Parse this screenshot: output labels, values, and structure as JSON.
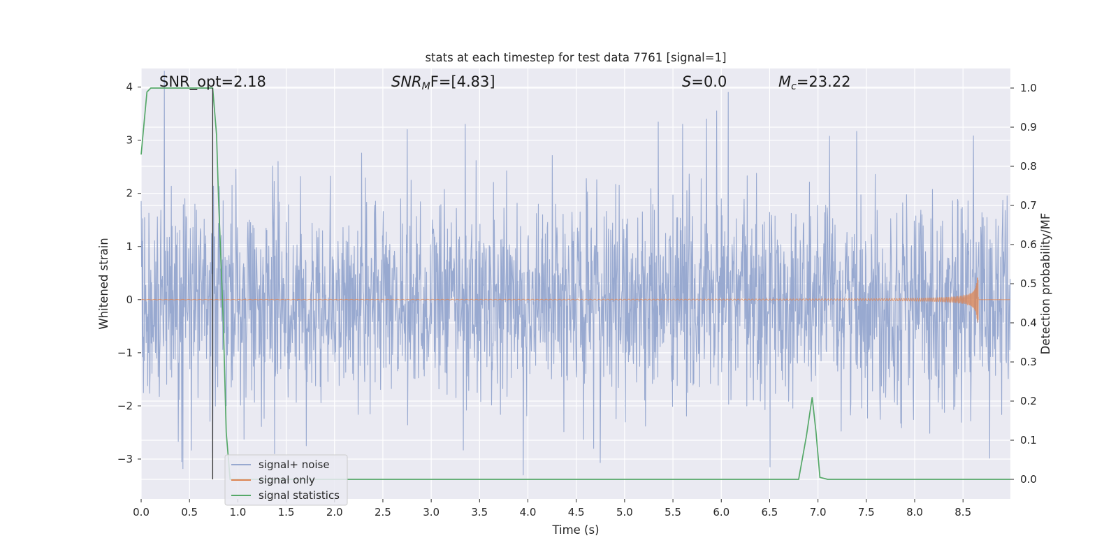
{
  "chart_data": {
    "type": "line",
    "title": "stats at each timestep for test data 7761 [signal=1]",
    "xlabel": "Time (s)",
    "ylabel": "Whitened strain",
    "y2label": "Detection probability/MF",
    "xlim": [
      0.0,
      8.99
    ],
    "ylim": [
      -3.75,
      4.35
    ],
    "y2lim": [
      -0.05,
      1.05
    ],
    "xticks": [
      0.0,
      0.5,
      1.0,
      1.5,
      2.0,
      2.5,
      3.0,
      3.5,
      4.0,
      4.5,
      5.0,
      5.5,
      6.0,
      6.5,
      7.0,
      7.5,
      8.0,
      8.5
    ],
    "xtick_labels": [
      "0.0",
      "0.5",
      "1.0",
      "1.5",
      "2.0",
      "2.5",
      "3.0",
      "3.5",
      "4.0",
      "4.5",
      "5.0",
      "5.5",
      "6.0",
      "6.5",
      "7.0",
      "7.5",
      "8.0",
      "8.5"
    ],
    "yticks": [
      -3,
      -2,
      -1,
      0,
      1,
      2,
      3,
      4
    ],
    "ytick_labels": [
      "−3",
      "−2",
      "−1",
      "0",
      "1",
      "2",
      "3",
      "4"
    ],
    "y2ticks": [
      0.0,
      0.1,
      0.2,
      0.3,
      0.4,
      0.5,
      0.6,
      0.7,
      0.8,
      0.9,
      1.0
    ],
    "y2tick_labels": [
      "0.0",
      "0.1",
      "0.2",
      "0.3",
      "0.4",
      "0.5",
      "0.6",
      "0.7",
      "0.8",
      "0.9",
      "1.0"
    ],
    "grid": true,
    "legend_position": "lower-left",
    "annotations": {
      "snr_opt": "SNR_opt=2.18",
      "snr_mf_base": "SNR",
      "snr_mf_sub": "M",
      "snr_mf_rest": "F=[4.83]",
      "s_var": "S",
      "s_rest": "=0.0",
      "mc_base": "M",
      "mc_sub": "c",
      "mc_rest": "=23.22"
    },
    "vertical_marker_x": 0.74,
    "series": [
      {
        "name": "signal+ noise",
        "color": "#98a9d0",
        "axis": "left",
        "sample_step": 0.004,
        "noise_sigma": 0.95,
        "spikes": [
          [
            0.24,
            4.3
          ],
          [
            5.6,
            3.3
          ],
          [
            5.85,
            3.4
          ],
          [
            5.95,
            3.55
          ],
          [
            6.07,
            3.9
          ],
          [
            2.75,
            3.2
          ],
          [
            3.35,
            3.3
          ],
          [
            0.42,
            -3.05
          ],
          [
            3.95,
            -3.3
          ],
          [
            1.38,
            -2.9
          ],
          [
            4.68,
            -2.8
          ]
        ]
      },
      {
        "name": "signal only",
        "color": "#dd8452",
        "axis": "left",
        "chirp_end": 8.66,
        "chirp_max_amp": 0.45
      },
      {
        "name": "signal statistics",
        "color": "#55a868",
        "axis": "right",
        "x": [
          0.0,
          0.06,
          0.1,
          0.2,
          0.4,
          0.6,
          0.72,
          0.74,
          0.78,
          0.8,
          0.85,
          0.88,
          0.92,
          1.0,
          2.0,
          3.0,
          4.0,
          5.0,
          6.0,
          6.5,
          6.8,
          6.88,
          6.94,
          6.98,
          7.02,
          7.1,
          8.0,
          8.99
        ],
        "y": [
          0.83,
          0.99,
          1.0,
          1.0,
          1.0,
          1.0,
          1.0,
          1.0,
          0.88,
          0.72,
          0.4,
          0.12,
          0.0,
          0.0,
          0.0,
          0.0,
          0.0,
          0.0,
          0.0,
          0.0,
          0.0,
          0.11,
          0.21,
          0.12,
          0.005,
          0.0,
          0.0,
          0.0
        ]
      }
    ]
  }
}
